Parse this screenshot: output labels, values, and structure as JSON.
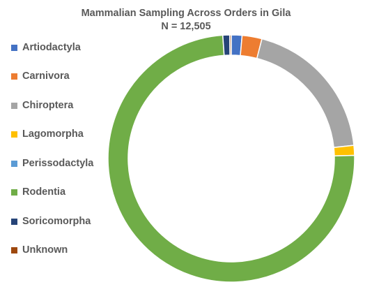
{
  "chart_data": {
    "type": "pie",
    "variant": "donut",
    "title": "Mammalian Sampling Across Orders in Gila",
    "subtitle": "N = 12,505",
    "legend_position": "left",
    "categories": [
      "Artiodactyla",
      "Carnivora",
      "Chiroptera",
      "Lagomorpha",
      "Perissodactyla",
      "Rodentia",
      "Soricomorpha",
      "Unknown"
    ],
    "values": [
      1.4,
      2.6,
      19.3,
      1.3,
      0.0,
      74.3,
      0.9,
      0.2
    ],
    "colors": [
      "#4472C4",
      "#ED7D31",
      "#A5A5A5",
      "#FFC000",
      "#5B9BD5",
      "#70AD47",
      "#264478",
      "#9E480E"
    ]
  }
}
